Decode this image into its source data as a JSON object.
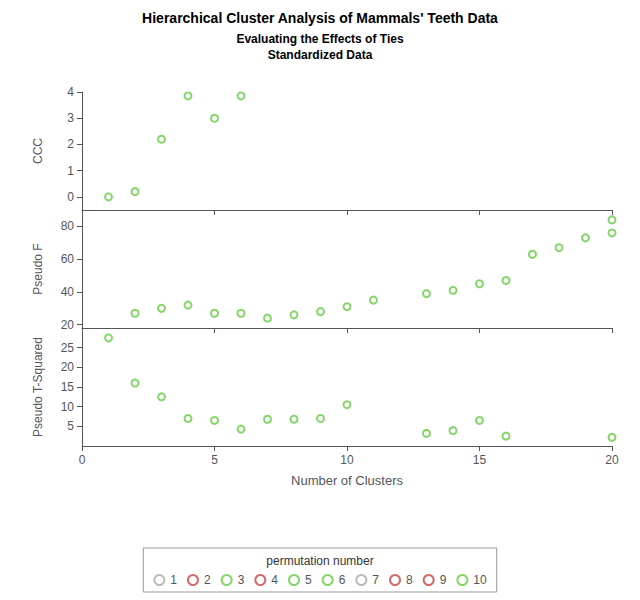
{
  "chart_data": [
    {
      "type": "scatter",
      "title": "Hierarchical Cluster Analysis of Mammals' Teeth Data",
      "subtitle": "Evaluating the Effects of Ties\nStandardized Data",
      "ylabel": "CCC",
      "x": [
        1,
        2,
        3,
        4,
        5,
        6
      ],
      "values": [
        0.0,
        0.2,
        2.2,
        3.85,
        3.0,
        3.85
      ],
      "color": "#66cc44",
      "marker": "circle",
      "xlim": [
        0,
        20
      ],
      "xticks": [
        0,
        5,
        10,
        15,
        20
      ],
      "ylim": [
        -0.5,
        4.0
      ],
      "yticks": [
        0,
        1,
        2,
        3,
        4
      ],
      "grid": false,
      "tick_labels": "y"
    },
    {
      "type": "scatter",
      "ylabel": "Pseudo F",
      "x": [
        2,
        3,
        4,
        5,
        6,
        7,
        8,
        9,
        10,
        11,
        13,
        14,
        15,
        16,
        17,
        18,
        19,
        20,
        20
      ],
      "values": [
        27.0,
        30.0,
        32.0,
        27.0,
        27.0,
        24.0,
        26.0,
        28.0,
        31.0,
        35.0,
        39.0,
        41.0,
        45.0,
        47.0,
        63.0,
        67.0,
        73.0,
        76.0,
        84
      ],
      "color": "#66cc44",
      "marker": "circle",
      "xlim": [
        0,
        20
      ],
      "xticks": [
        0,
        5,
        10,
        15,
        20
      ],
      "ylim": [
        18,
        90
      ],
      "yticks": [
        20,
        40,
        60,
        80
      ],
      "grid": false,
      "tick_labels": "y"
    },
    {
      "type": "scatter",
      "ylabel": "Pseudo T-Squared",
      "xlabel": "Number of Clusters",
      "x": [
        1,
        2,
        3,
        4,
        5,
        6,
        7,
        8,
        9,
        10,
        13,
        14,
        15,
        16,
        20
      ],
      "values": [
        27.5,
        16.0,
        12.5,
        7.0,
        6.5,
        4.3,
        6.8,
        6.8,
        7.0,
        10.5,
        3.2,
        3.9,
        6.5,
        2.5,
        2.2
      ],
      "color": "#66cc44",
      "marker": "circle",
      "xlim": [
        0,
        20
      ],
      "xticks": [
        0,
        5,
        10,
        15,
        20
      ],
      "ylim": [
        0,
        30
      ],
      "yticks": [
        5,
        10,
        15,
        20,
        25
      ],
      "grid": false,
      "legend": "bottom",
      "legend_title": "permutation number",
      "legend_entries": [
        {
          "name": "1",
          "color": "#aaaaaa"
        },
        {
          "name": "2",
          "color": "#cc4444"
        },
        {
          "name": "3",
          "color": "#66cc44"
        },
        {
          "name": "4",
          "color": "#cc4444"
        },
        {
          "name": "5",
          "color": "#66cc44"
        },
        {
          "name": "6",
          "color": "#66cc44"
        },
        {
          "name": "7",
          "color": "#aaaaaa"
        },
        {
          "name": "8",
          "color": "#cc4444"
        },
        {
          "name": "9",
          "color": "#cc4444"
        },
        {
          "name": "10",
          "color": "#66cc44"
        }
      ]
    }
  ]
}
